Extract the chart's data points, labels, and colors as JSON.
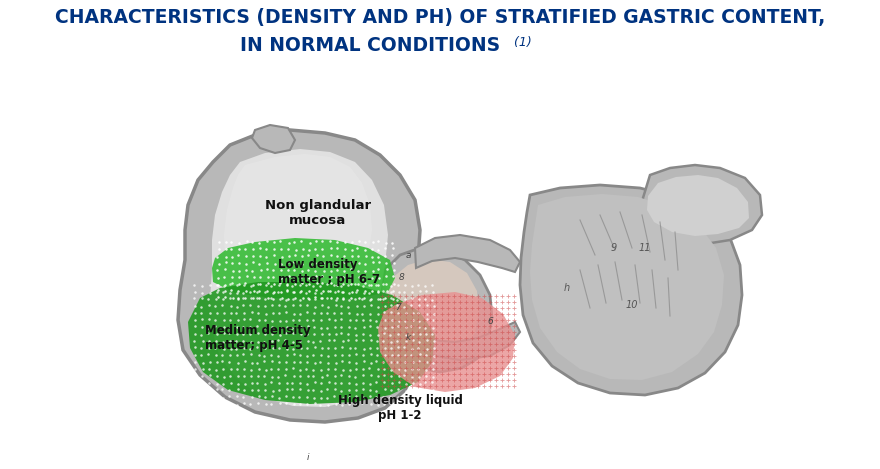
{
  "title_line1": "CHARACTERISTICS (DENSITY AND PH) OF STRATIFIED GASTRIC CONTENT,",
  "title_line2": "IN NORMAL CONDITIONS",
  "title_suffix": " (1)",
  "title_color": "#003380",
  "title_fontsize": 13.5,
  "background_color": "#ffffff",
  "fig_width": 8.8,
  "fig_height": 4.69,
  "dpi": 100,
  "label_non_glandular": "Non glandular\nmucosa",
  "label_low_density": "Low density\nmatter ; pH 6-7",
  "label_medium_density": "Medium density\nmatter; pH 4-5",
  "label_high_density": "High density liquid\npH 1-2",
  "label_fontsize": 8.5,
  "color_stomach_outer": "#a0a0a0",
  "color_stomach_wall": "#b8b8b8",
  "color_stomach_inner": "#d0d0d0",
  "color_stomach_light": "#e0e0e0",
  "color_stomach_dark": "#888888",
  "color_low_density": "#33bb33",
  "color_medium_density": "#229922",
  "color_high_density": "#e89090",
  "color_high_density_grid": "#cc4444",
  "color_label": "#111111",
  "color_right_dark": "#999999",
  "color_right_inner": "#c0c0c0"
}
